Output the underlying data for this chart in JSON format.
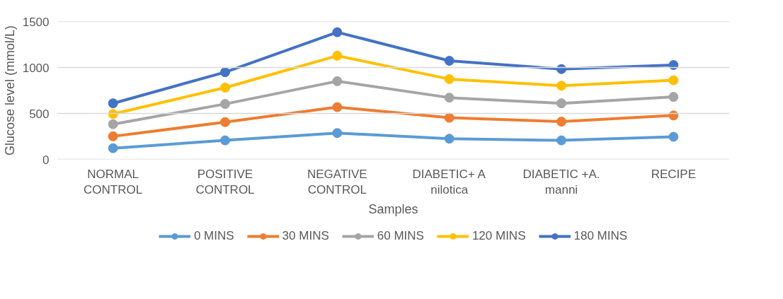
{
  "chart_data": {
    "type": "line",
    "xlabel": "Samples",
    "ylabel": "Glucose level (mmol/L)",
    "categories": [
      "NORMAL CONTROL",
      "POSITIVE CONTROL",
      "NEGATIVE CONTROL",
      "DIABETIC+ A nilotica",
      "DIABETIC +A. manni",
      "RECIPE"
    ],
    "series": [
      {
        "name": "0 MINS",
        "color": "#5b9bd5",
        "values": [
          122,
          207,
          287,
          225,
          207,
          246
        ]
      },
      {
        "name": "30 MINS",
        "color": "#ed7d31",
        "values": [
          251,
          406,
          569,
          453,
          411,
          478
        ]
      },
      {
        "name": "60 MINS",
        "color": "#a5a5a5",
        "values": [
          383,
          603,
          851,
          672,
          610,
          680
        ]
      },
      {
        "name": "120 MINS",
        "color": "#ffc000",
        "values": [
          494,
          781,
          1128,
          874,
          802,
          861
        ]
      },
      {
        "name": "180 MINS",
        "color": "#4472c4",
        "values": [
          610,
          949,
          1384,
          1073,
          983,
          1027
        ]
      }
    ],
    "ylim": [
      0,
      1500
    ],
    "yticks": [
      0,
      500,
      1000,
      1500
    ],
    "grid": "y",
    "legend": "bottom",
    "marker": "circle",
    "line_style": "solid"
  }
}
